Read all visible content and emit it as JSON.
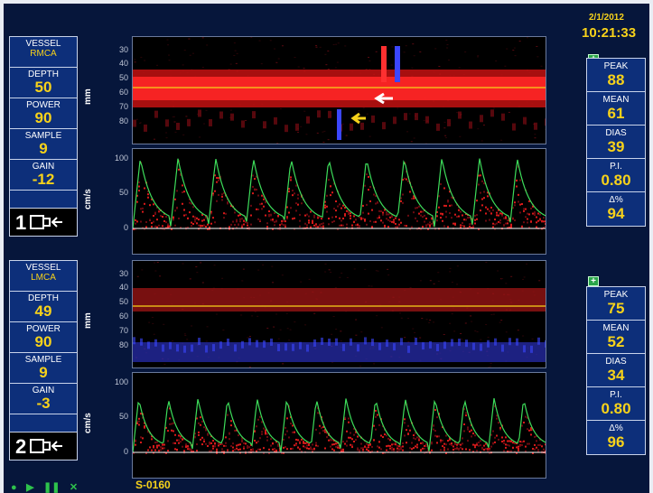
{
  "header": {
    "date": "2/1/2012",
    "time": "10:21:33"
  },
  "channels": [
    {
      "vessel_label": "VESSEL",
      "vessel": "RMCA",
      "depth_label": "DEPTH",
      "depth": "50",
      "power_label": "POWER",
      "power": "90",
      "sample_label": "SAMPLE",
      "sample": "9",
      "gain_label": "GAIN",
      "gain": "-12",
      "probe_number": "1",
      "stats": {
        "peak_label": "PEAK",
        "peak": "88",
        "mean_label": "MEAN",
        "mean": "61",
        "dias_label": "DIAS",
        "dias": "39",
        "pi_label": "P.I.",
        "pi": "0.80",
        "delta_label": "Δ%",
        "delta": "94"
      },
      "mmode": {
        "unit": "mm",
        "ticks": [
          "30",
          "40",
          "50",
          "60",
          "70",
          "80"
        ]
      },
      "spectrum": {
        "unit": "cm/s",
        "ticks": [
          "100",
          "50",
          "0"
        ]
      }
    },
    {
      "vessel_label": "VESSEL",
      "vessel": "LMCA",
      "depth_label": "DEPTH",
      "depth": "49",
      "power_label": "POWER",
      "power": "90",
      "sample_label": "SAMPLE",
      "sample": "9",
      "gain_label": "GAIN",
      "gain": "-3",
      "probe_number": "2",
      "stats": {
        "peak_label": "PEAK",
        "peak": "75",
        "mean_label": "MEAN",
        "mean": "52",
        "dias_label": "DIAS",
        "dias": "34",
        "pi_label": "P.I.",
        "pi": "0.80",
        "delta_label": "Δ%",
        "delta": "96"
      },
      "mmode": {
        "unit": "mm",
        "ticks": [
          "30",
          "40",
          "50",
          "60",
          "70",
          "80"
        ]
      },
      "spectrum": {
        "unit": "cm/s",
        "ticks": [
          "100",
          "50",
          "0"
        ]
      }
    }
  ],
  "footer": {
    "code": "S-0160"
  },
  "controls": [
    "record-icon",
    "play-icon",
    "pause-icon",
    "stop-icon"
  ],
  "colors": {
    "accent": "#f7d21a",
    "background": "#06163b",
    "envelope": "#3ddc5a",
    "flow_toward": "#ff2a2a",
    "flow_away": "#3a46ff"
  }
}
